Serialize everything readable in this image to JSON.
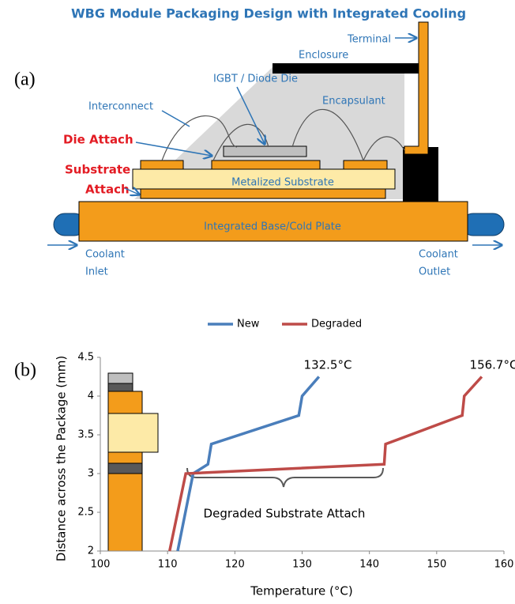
{
  "panel_a": {
    "label": "(a)",
    "title": "WBG Module Packaging Design with Integrated Cooling",
    "terminal": "Terminal",
    "enclosure": "Enclosure",
    "die": "IGBT / Diode Die",
    "encapsulant": "Encapsulant",
    "interconnect": "Interconnect",
    "die_attach": "Die Attach",
    "substrate_attach": [
      "Substrate",
      "Attach"
    ],
    "metalized_substrate": "Metalized Substrate",
    "base_plate": "Integrated Base/Cold Plate",
    "coolant_inlet": [
      "Coolant",
      "Inlet"
    ],
    "coolant_outlet": [
      "Coolant",
      "Outlet"
    ]
  },
  "chart_data": {
    "type": "line",
    "panel_label": "(b)",
    "x_label": "Temperature (°C)",
    "y_label": "Distance across the Package (mm)",
    "xlim": [
      100,
      160
    ],
    "xticks": [
      100,
      110,
      120,
      130,
      140,
      150,
      160
    ],
    "ylim": [
      2,
      4.5
    ],
    "yticks": [
      2,
      2.5,
      3,
      3.5,
      4,
      4.5
    ],
    "grid": false,
    "legend": "top",
    "series": [
      {
        "name": "New",
        "color": "#4a7ebb",
        "x": [
          111.5,
          113.8,
          116,
          116.5,
          129.5,
          130,
          132.5
        ],
        "values": [
          2,
          3,
          3.12,
          3.38,
          3.75,
          4,
          4.25
        ]
      },
      {
        "name": "Degraded",
        "color": "#be4b48",
        "x": [
          110.3,
          112.7,
          142.2,
          142.4,
          153.8,
          154.1,
          156.7
        ],
        "values": [
          2,
          3,
          3.12,
          3.38,
          3.75,
          4,
          4.25
        ]
      }
    ],
    "annotations": [
      "132.5°C",
      "156.7°C",
      "Degraded Substrate Attach"
    ]
  }
}
